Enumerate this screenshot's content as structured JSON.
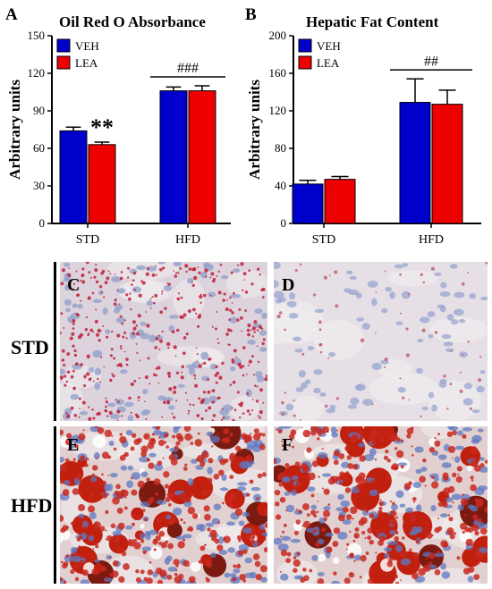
{
  "figure": {
    "panel_labels": [
      "A",
      "B",
      "C",
      "D",
      "E",
      "F"
    ],
    "row_labels": [
      "STD",
      "HFD"
    ]
  },
  "chart_data": [
    {
      "type": "bar",
      "panel": "A",
      "title": "Oil Red O Absorbance",
      "xlabel": "",
      "ylabel": "Arbitrary units",
      "ylim": [
        0,
        150
      ],
      "yticks": [
        0,
        30,
        60,
        90,
        120,
        150
      ],
      "categories": [
        "STD",
        "HFD"
      ],
      "series": [
        {
          "name": "VEH",
          "color": "#0000cc",
          "values": [
            74,
            106
          ],
          "errors": [
            3,
            3
          ]
        },
        {
          "name": "LEA",
          "color": "#ee0000",
          "values": [
            63,
            106
          ],
          "errors": [
            2,
            4
          ]
        }
      ],
      "legend": "top-left",
      "annotations": [
        {
          "text": "**",
          "category": "STD",
          "series": "LEA"
        },
        {
          "text": "###",
          "category": "HFD",
          "bracket": true
        }
      ],
      "grid": false
    },
    {
      "type": "bar",
      "panel": "B",
      "title": "Hepatic Fat Content",
      "xlabel": "",
      "ylabel": "Arbitrary units",
      "ylim": [
        0,
        200
      ],
      "yticks": [
        0,
        40,
        80,
        120,
        160,
        200
      ],
      "categories": [
        "STD",
        "HFD"
      ],
      "series": [
        {
          "name": "VEH",
          "color": "#0000cc",
          "values": [
            42,
            129
          ],
          "errors": [
            4,
            25
          ]
        },
        {
          "name": "LEA",
          "color": "#ee0000",
          "values": [
            47,
            127
          ],
          "errors": [
            3,
            15
          ]
        }
      ],
      "legend": "top-left",
      "annotations": [
        {
          "text": "##",
          "category": "HFD",
          "bracket": true
        }
      ],
      "grid": false
    }
  ],
  "micrographs": [
    {
      "panel": "C",
      "condition": "STD",
      "treatment": "VEH",
      "stain": "light-pink"
    },
    {
      "panel": "D",
      "condition": "STD",
      "treatment": "LEA",
      "stain": "pale"
    },
    {
      "panel": "E",
      "condition": "HFD",
      "treatment": "VEH",
      "stain": "heavy-red"
    },
    {
      "panel": "F",
      "condition": "HFD",
      "treatment": "LEA",
      "stain": "heavy-red"
    }
  ]
}
